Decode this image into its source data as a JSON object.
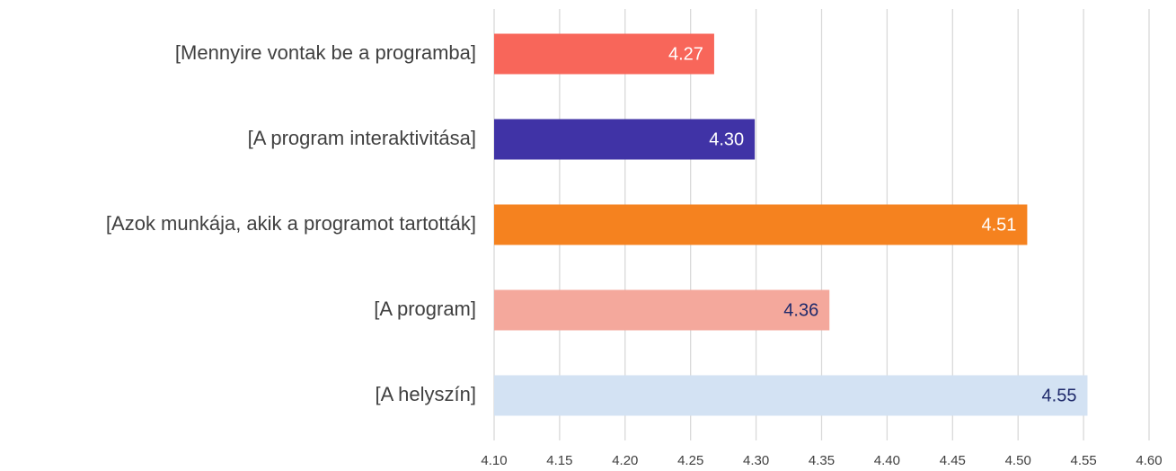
{
  "chart_data": {
    "type": "barh",
    "categories": [
      "[Mennyire vontak be a programba]",
      "[A program interaktivitása]",
      "[Azok munkája, akik a programot tartották]",
      "[A program]",
      "[A helyszín]"
    ],
    "values": [
      4.268,
      4.299,
      4.507,
      4.356,
      4.553
    ],
    "value_labels": [
      "4.27",
      "4.30",
      "4.51",
      "4.36",
      "4.55"
    ],
    "colors": [
      "#f8665a",
      "#4033a6",
      "#f5821f",
      "#f4a89c",
      "#d3e2f3"
    ],
    "value_label_colors": [
      "#ffffff",
      "#ffffff",
      "#ffffff",
      "#1f2a6b",
      "#1f2a6b"
    ],
    "xlim": [
      4.1,
      4.6
    ],
    "xticks": [
      {
        "value": 4.1,
        "label": "4.10"
      },
      4.15,
      {
        "value": 4.2,
        "label": "4.20"
      },
      4.25,
      {
        "value": 4.3,
        "label": "4.30"
      },
      4.35,
      {
        "value": 4.4,
        "label": "4.40"
      },
      4.45,
      {
        "value": 4.5,
        "label": "4.50"
      },
      4.55,
      {
        "value": 4.6,
        "label": "4.60"
      }
    ],
    "grid": true
  }
}
